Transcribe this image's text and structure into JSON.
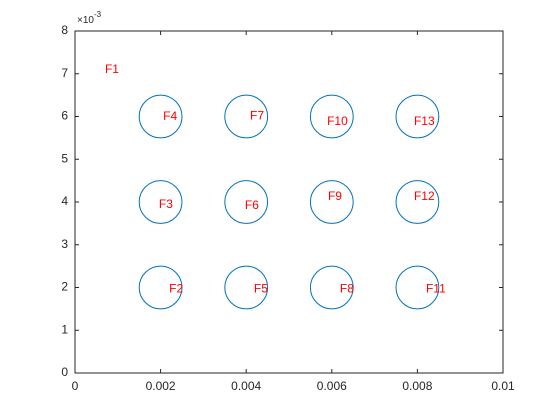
{
  "chart_data": {
    "type": "circles",
    "circles": {
      "x": [
        0.002,
        0.004,
        0.006,
        0.008,
        0.002,
        0.004,
        0.006,
        0.008,
        0.002,
        0.004,
        0.006,
        0.008
      ],
      "y": [
        0.002,
        0.002,
        0.002,
        0.002,
        0.004,
        0.004,
        0.004,
        0.004,
        0.006,
        0.006,
        0.006,
        0.006
      ],
      "radius": [
        0.0005,
        0.0005,
        0.0005,
        0.0005,
        0.0005,
        0.0005,
        0.0005,
        0.0005,
        0.0005,
        0.0005,
        0.0005,
        0.0005
      ],
      "color": "#0072bd"
    },
    "labels": {
      "text": [
        "F1",
        "F2",
        "F3",
        "F4",
        "F5",
        "F6",
        "F7",
        "F8",
        "F9",
        "F10",
        "F11",
        "F12",
        "F13"
      ],
      "x": [
        0.0007,
        0.0022,
        0.00196,
        0.00206,
        0.00418,
        0.00397,
        0.00409,
        0.00619,
        0.00591,
        0.00589,
        0.0082,
        0.00792,
        0.00792
      ],
      "y": [
        0.00709,
        0.00196,
        0.00393,
        0.00599,
        0.00196,
        0.00391,
        0.006,
        0.00196,
        0.00412,
        0.00587,
        0.00196,
        0.00412,
        0.00587
      ],
      "color": "#ff0000"
    },
    "xlim": [
      0,
      0.01
    ],
    "ylim": [
      0,
      0.008
    ],
    "xticks": [
      0,
      0.002,
      0.004,
      0.006,
      0.008,
      0.01
    ],
    "yticks": [
      {
        "value": 0,
        "label": "0"
      },
      {
        "value": 0.001,
        "label": "1"
      },
      {
        "value": 0.002,
        "label": "2"
      },
      {
        "value": 0.003,
        "label": "3"
      },
      {
        "value": 0.004,
        "label": "4"
      },
      {
        "value": 0.005,
        "label": "5"
      },
      {
        "value": 0.006,
        "label": "6"
      },
      {
        "value": 0.007,
        "label": "7"
      },
      {
        "value": 0.008,
        "label": "8"
      }
    ],
    "y_exponent_base": "×10",
    "y_exponent_power": "-3"
  }
}
